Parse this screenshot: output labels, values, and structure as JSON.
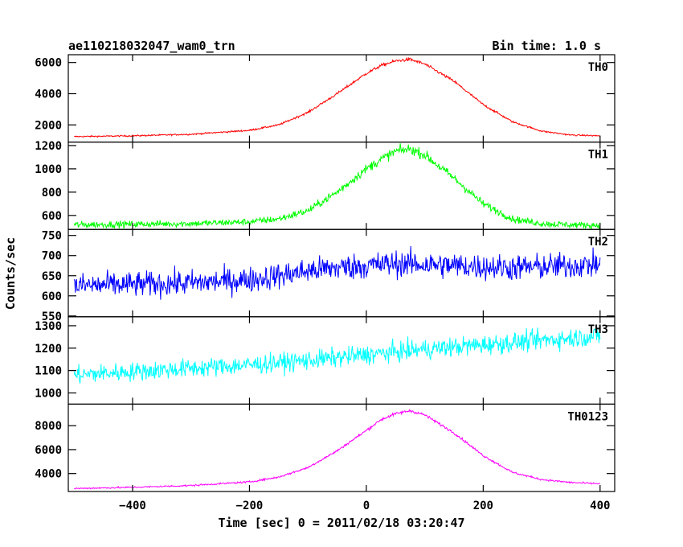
{
  "chart_data": {
    "type": "line",
    "title": "ae110218032047_wam0_trn",
    "bin_time_label": "Bin time: 1.0 s",
    "xlabel": "Time [sec] 0 = 2011/02/18 03:20:47",
    "ylabel": "Counts/sec",
    "xlim": [
      -510,
      425
    ],
    "x_ticks": [
      -400,
      -200,
      0,
      200,
      400
    ],
    "x_tick_labels": [
      "−400",
      "−200",
      "0",
      "200",
      "400"
    ],
    "grid": false,
    "series": [
      {
        "name": "TH0",
        "color": "#ff0000",
        "ylim": [
          900,
          6500
        ],
        "y_ticks": [
          2000,
          4000,
          6000
        ],
        "y_tick_labels": [
          "2000",
          "4000",
          "6000"
        ],
        "x": [
          -500,
          -400,
          -300,
          -200,
          -150,
          -100,
          -50,
          0,
          25,
          50,
          75,
          100,
          150,
          200,
          250,
          300,
          350,
          400
        ],
        "values": [
          1250,
          1300,
          1400,
          1650,
          2000,
          2800,
          4000,
          5300,
          5800,
          6100,
          6200,
          5900,
          4800,
          3300,
          2200,
          1600,
          1350,
          1300
        ]
      },
      {
        "name": "TH1",
        "color": "#00ff00",
        "ylim": [
          480,
          1230
        ],
        "y_ticks": [
          600,
          800,
          1000,
          1200
        ],
        "y_tick_labels": [
          "600",
          "800",
          "1000",
          "1200"
        ],
        "x": [
          -500,
          -400,
          -300,
          -200,
          -150,
          -100,
          -50,
          0,
          25,
          50,
          75,
          100,
          150,
          200,
          250,
          300,
          350,
          400
        ],
        "values": [
          520,
          525,
          530,
          545,
          570,
          640,
          800,
          1000,
          1080,
          1150,
          1170,
          1120,
          920,
          700,
          570,
          530,
          520,
          515
        ]
      },
      {
        "name": "TH2",
        "color": "#0000ff",
        "ylim": [
          548,
          765
        ],
        "y_ticks": [
          550,
          600,
          650,
          700,
          750
        ],
        "y_tick_labels": [
          "550",
          "600",
          "650",
          "700",
          "750"
        ],
        "x": [
          -500,
          -400,
          -300,
          -200,
          -150,
          -100,
          -50,
          0,
          50,
          100,
          150,
          200,
          250,
          300,
          350,
          400
        ],
        "values": [
          625,
          628,
          632,
          640,
          650,
          662,
          670,
          675,
          680,
          678,
          675,
          672,
          670,
          672,
          675,
          678
        ]
      },
      {
        "name": "TH3",
        "color": "#00ffff",
        "ylim": [
          950,
          1340
        ],
        "y_ticks": [
          1000,
          1100,
          1200,
          1300
        ],
        "y_tick_labels": [
          "1000",
          "1100",
          "1200",
          "1300"
        ],
        "x": [
          -500,
          -400,
          -300,
          -200,
          -100,
          0,
          100,
          200,
          300,
          400
        ],
        "values": [
          1080,
          1095,
          1110,
          1125,
          1145,
          1170,
          1195,
          1215,
          1235,
          1255
        ]
      },
      {
        "name": "TH0123",
        "color": "#ff00ff",
        "ylim": [
          2500,
          9800
        ],
        "y_ticks": [
          4000,
          6000,
          8000
        ],
        "y_tick_labels": [
          "4000",
          "6000",
          "8000"
        ],
        "x": [
          -500,
          -400,
          -300,
          -200,
          -150,
          -100,
          -50,
          0,
          25,
          50,
          75,
          100,
          150,
          200,
          250,
          300,
          350,
          400
        ],
        "values": [
          2750,
          2850,
          3000,
          3300,
          3700,
          4500,
          5900,
          7600,
          8500,
          9000,
          9250,
          8900,
          7400,
          5500,
          4100,
          3500,
          3250,
          3150
        ]
      }
    ]
  }
}
